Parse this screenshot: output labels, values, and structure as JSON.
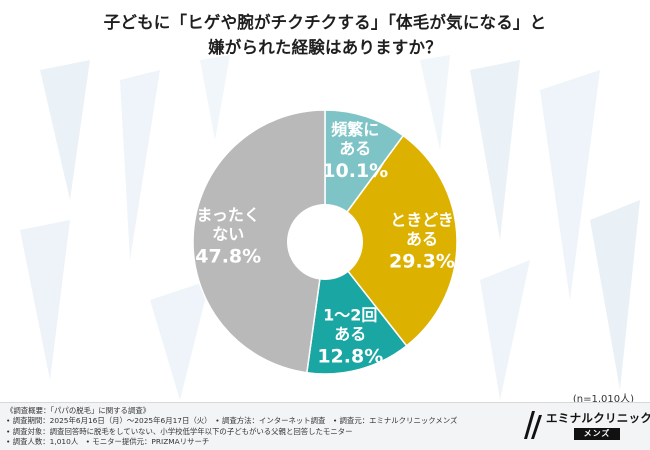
{
  "title": {
    "line1": "子どもに「ヒゲや腕がチクチクする」「体毛が気になる」と",
    "line2": "嫌がられた経験はありますか？"
  },
  "chart_data": {
    "type": "pie",
    "title": "子どもに「ヒゲや腕がチクチクする」「体毛が気になる」と嫌がられた経験はありますか？",
    "unit": "%",
    "categories": [
      "頻繁にある",
      "ときどきある",
      "1〜2回ある",
      "まったくない"
    ],
    "values": [
      10.1,
      29.3,
      12.8,
      47.8
    ],
    "slices": [
      {
        "name": "頻繁にある",
        "label_lines": [
          "頻繁に",
          "ある"
        ],
        "value": 10.1,
        "value_text": "10.1%",
        "color": "#7ec4c6",
        "text_color": "#ffffff"
      },
      {
        "name": "ときどきある",
        "label_lines": [
          "ときどき",
          "ある"
        ],
        "value": 29.3,
        "value_text": "29.3%",
        "color": "#ddb100",
        "text_color": "#ffffff"
      },
      {
        "name": "1〜2回ある",
        "label_lines": [
          "1〜2回",
          "ある"
        ],
        "value": 12.8,
        "value_text": "12.8%",
        "color": "#1aa6a3",
        "text_color": "#ffffff"
      },
      {
        "name": "まったくない",
        "label_lines": [
          "まったく",
          "ない"
        ],
        "value": 47.8,
        "value_text": "47.8%",
        "color": "#b9b9b9",
        "text_color": "#ffffff"
      }
    ],
    "sample_size": "(n=1,010人)"
  },
  "footer": {
    "lines": [
      "《調査概要：「パパの脱毛」に関する調査》",
      "• 調査期間：2025年6月16日（月）〜2025年6月17日（火）　• 調査方法：インターネット調査　• 調査元：エミナルクリニックメンズ",
      "• 調査対象：調査回答時に脱毛をしていない、小学校低学年以下の子どもがいる父親と回答したモニター",
      "• 調査人数：1,010人　• モニター提供元：PRIZMAリサーチ"
    ]
  },
  "logo": {
    "name": "エミナルクリニック",
    "sub": "メンズ"
  }
}
